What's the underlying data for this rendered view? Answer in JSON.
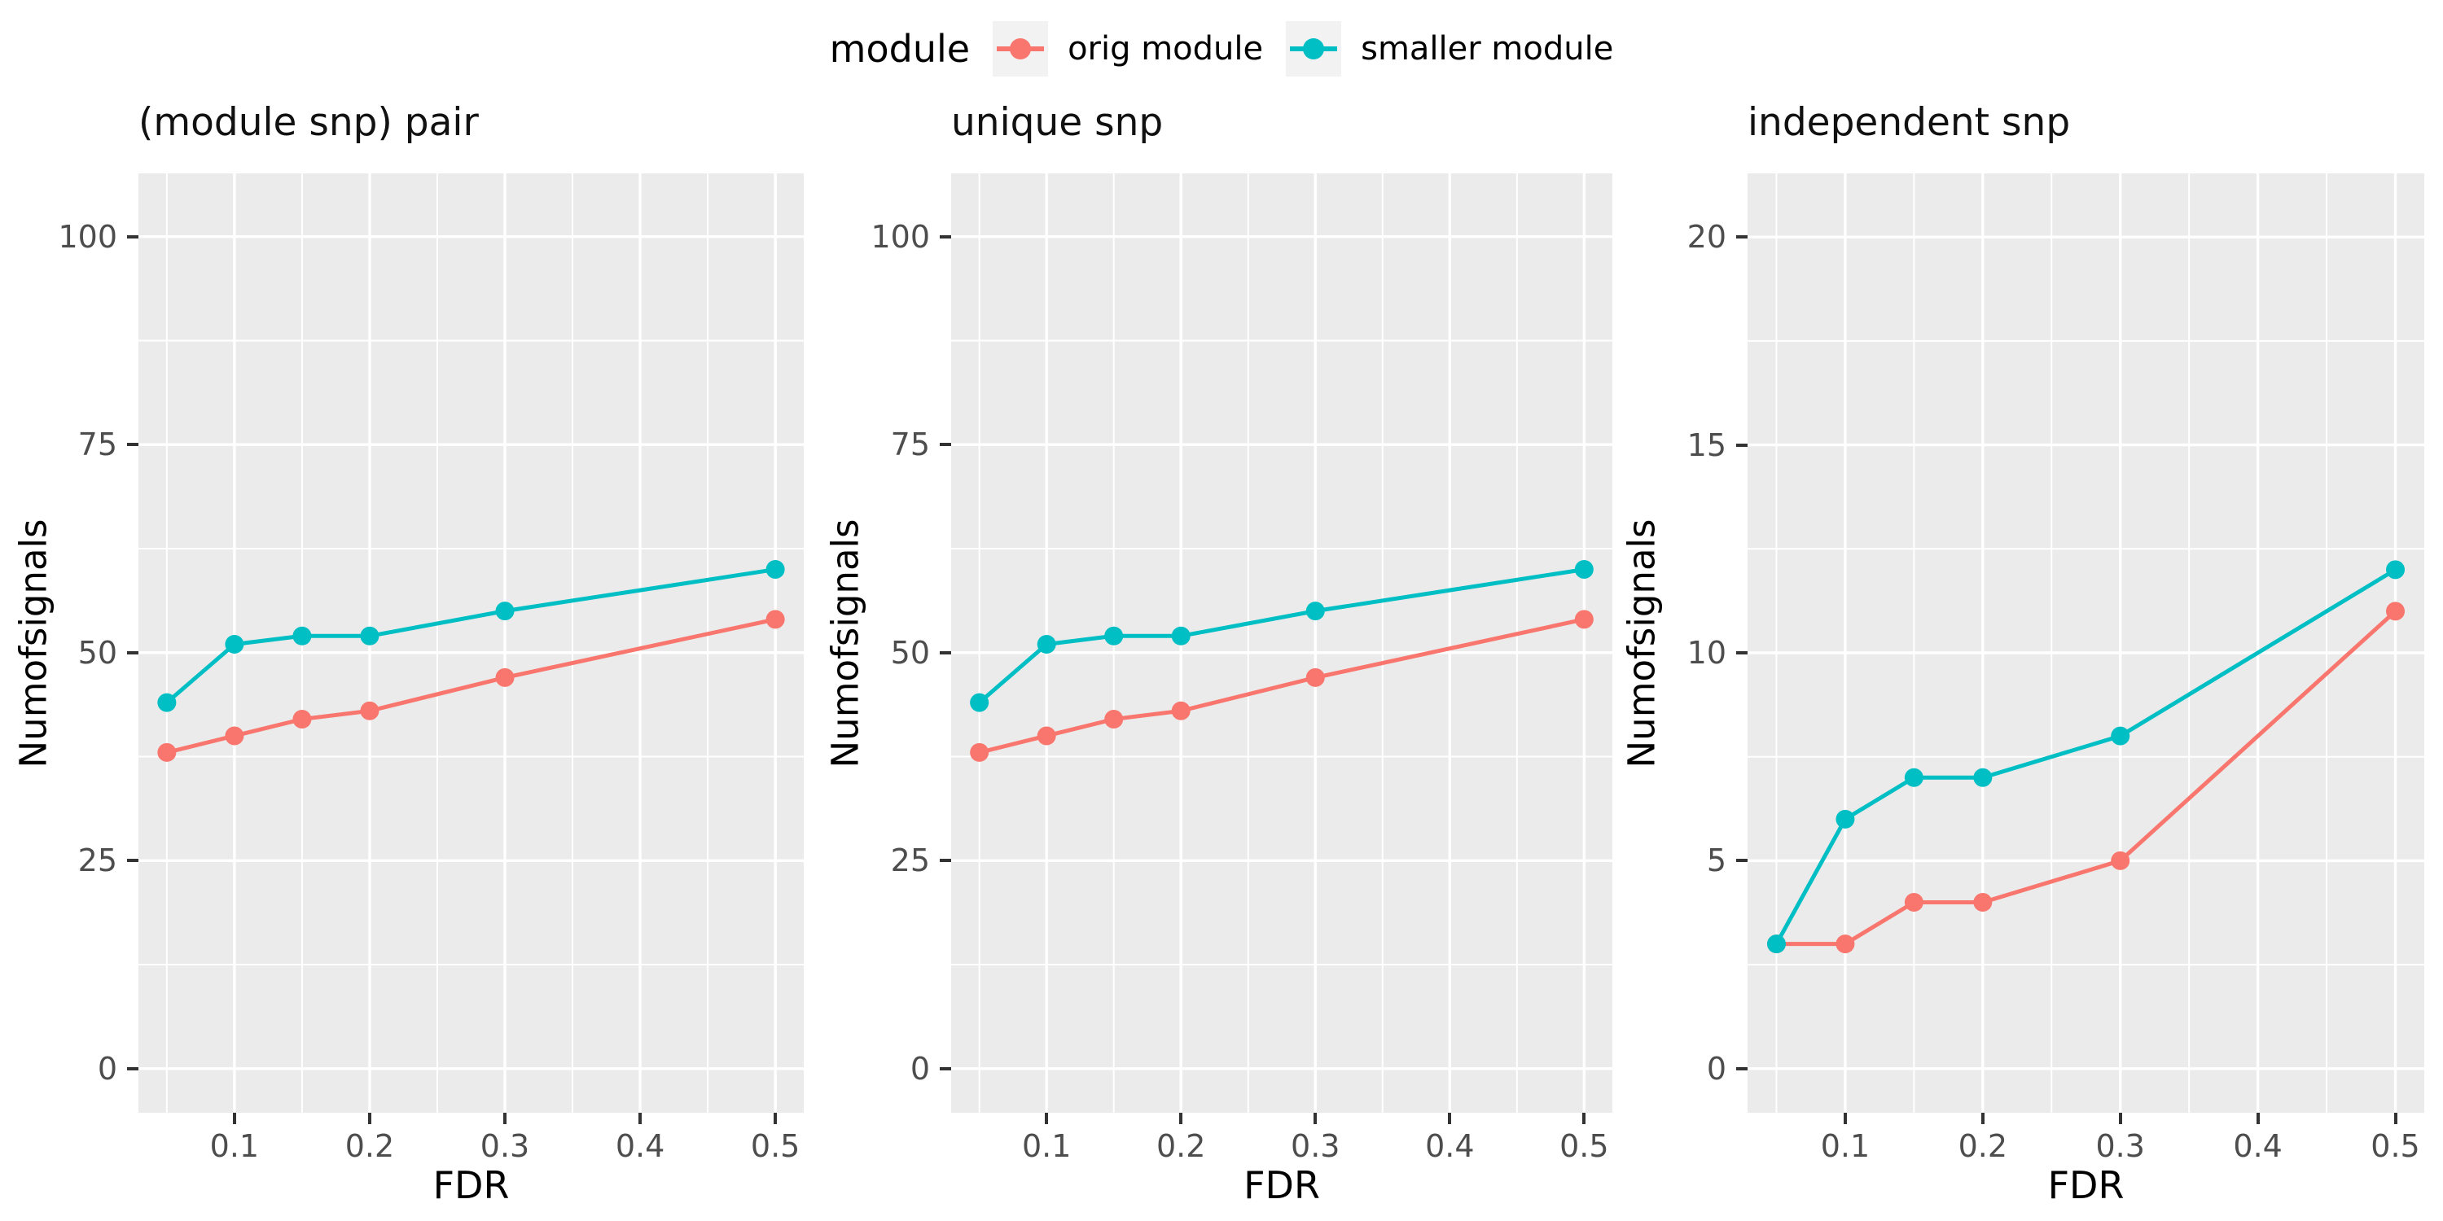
{
  "figure": {
    "background": "#FFFFFF"
  },
  "colors": {
    "panel_bg": "#EBEBEB",
    "grid_major": "#FFFFFF",
    "grid_minor": "#FFFFFF",
    "tick_mark": "#333333",
    "tick_label": "#4D4D4D",
    "text": "#000000",
    "legend_key_bg": "#F2F2F2",
    "orig_module": "#F8766D",
    "smaller_module": "#00BFC4"
  },
  "legend": {
    "title": "module",
    "position": "top",
    "items": [
      {
        "label": "orig module",
        "color": "#F8766D"
      },
      {
        "label": "smaller module",
        "color": "#00BFC4"
      }
    ]
  },
  "chart_data": [
    {
      "type": "line",
      "title": "(module snp) pair",
      "xlabel": "FDR",
      "ylabel": "Numofsignals",
      "x": [
        0.05,
        0.1,
        0.15,
        0.2,
        0.3,
        0.5
      ],
      "series": [
        {
          "name": "orig module",
          "color": "#F8766D",
          "values": [
            38,
            40,
            42,
            43,
            47,
            54
          ]
        },
        {
          "name": "smaller module",
          "color": "#00BFC4",
          "values": [
            44,
            51,
            52,
            52,
            55,
            60
          ]
        }
      ],
      "xticks": [
        0.1,
        0.2,
        0.3,
        0.4,
        0.5
      ],
      "yticks": [
        0,
        25,
        50,
        75,
        100
      ],
      "xticks_minor": [
        0.05,
        0.15,
        0.25,
        0.35,
        0.45
      ],
      "yticks_minor": [
        12.5,
        37.5,
        62.5,
        87.5
      ],
      "xlim": [
        0.029,
        0.521
      ],
      "ylim": [
        -5.3,
        107.6
      ],
      "grid": true
    },
    {
      "type": "line",
      "title": "unique snp",
      "xlabel": "FDR",
      "ylabel": "Numofsignals",
      "x": [
        0.05,
        0.1,
        0.15,
        0.2,
        0.3,
        0.5
      ],
      "series": [
        {
          "name": "orig module",
          "color": "#F8766D",
          "values": [
            38,
            40,
            42,
            43,
            47,
            54
          ]
        },
        {
          "name": "smaller module",
          "color": "#00BFC4",
          "values": [
            44,
            51,
            52,
            52,
            55,
            60
          ]
        }
      ],
      "xticks": [
        0.1,
        0.2,
        0.3,
        0.4,
        0.5
      ],
      "yticks": [
        0,
        25,
        50,
        75,
        100
      ],
      "xticks_minor": [
        0.05,
        0.15,
        0.25,
        0.35,
        0.45
      ],
      "yticks_minor": [
        12.5,
        37.5,
        62.5,
        87.5
      ],
      "xlim": [
        0.029,
        0.521
      ],
      "ylim": [
        -5.3,
        107.6
      ],
      "grid": true
    },
    {
      "type": "line",
      "title": "independent snp",
      "xlabel": "FDR",
      "ylabel": "Numofsignals",
      "x": [
        0.05,
        0.1,
        0.15,
        0.2,
        0.3,
        0.5
      ],
      "series": [
        {
          "name": "orig module",
          "color": "#F8766D",
          "values": [
            3,
            3,
            4,
            4,
            5,
            11
          ]
        },
        {
          "name": "smaller module",
          "color": "#00BFC4",
          "values": [
            3,
            6,
            7,
            7,
            8,
            12
          ]
        }
      ],
      "xticks": [
        0.1,
        0.2,
        0.3,
        0.4,
        0.5
      ],
      "yticks": [
        0,
        5,
        10,
        15,
        20
      ],
      "xticks_minor": [
        0.05,
        0.15,
        0.25,
        0.35,
        0.45
      ],
      "yticks_minor": [
        2.5,
        7.5,
        12.5,
        17.5
      ],
      "xlim": [
        0.029,
        0.521
      ],
      "ylim": [
        -1.06,
        21.53
      ],
      "grid": true
    }
  ]
}
